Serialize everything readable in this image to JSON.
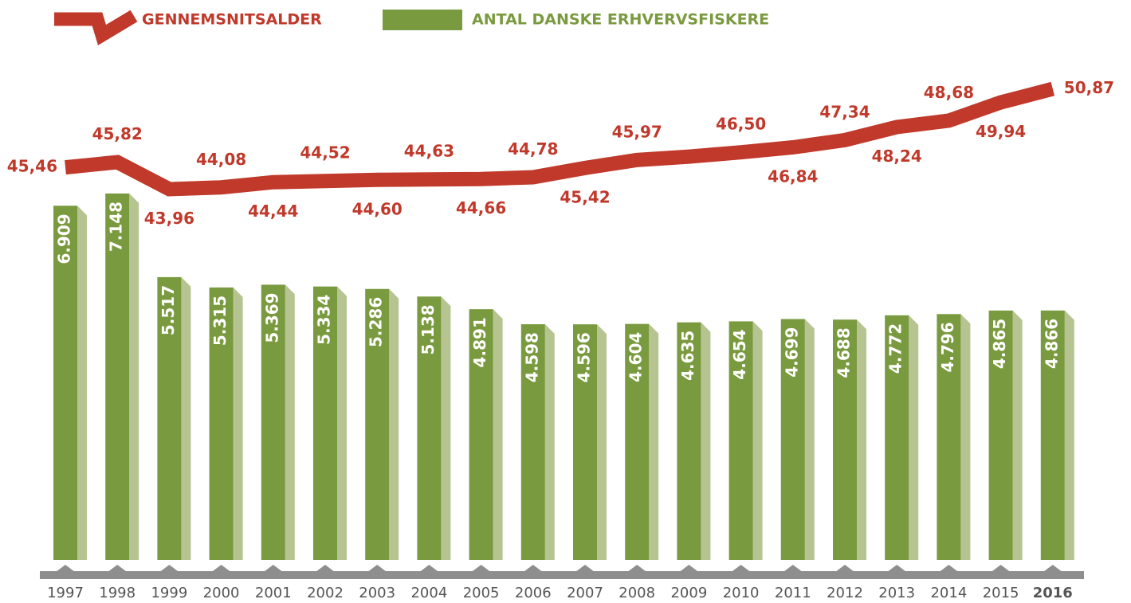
{
  "chart_data": {
    "type": "bar",
    "categories": [
      "1997",
      "1998",
      "1999",
      "2000",
      "2001",
      "2002",
      "2003",
      "2004",
      "2005",
      "2006",
      "2007",
      "2008",
      "2009",
      "2010",
      "2011",
      "2012",
      "2013",
      "2014",
      "2015",
      "2016"
    ],
    "series": [
      {
        "name": "GENNEMSNITSALDER",
        "type": "line",
        "axis": "y2",
        "color": "#c0392b",
        "values": [
          45.46,
          45.82,
          43.96,
          44.08,
          44.44,
          44.52,
          44.6,
          44.63,
          44.66,
          44.78,
          45.42,
          45.97,
          46.2,
          46.5,
          46.84,
          47.34,
          48.24,
          48.68,
          49.94,
          50.87
        ],
        "value_labels": [
          "45,46",
          "45,82",
          "43,96",
          "44,08",
          "44,44",
          "44,52",
          "44,60",
          "44,63",
          "44,66",
          "44,78",
          "45,42",
          "45,97",
          null,
          "46,50",
          "46,84",
          "47,34",
          "48,24",
          "48,68",
          "49,94",
          "50,87"
        ]
      },
      {
        "name": "ANTAL DANSKE ERHVERVSFISKERE",
        "type": "bar",
        "color": "#7a9a3f",
        "values": [
          6909,
          7148,
          5517,
          5315,
          5369,
          5334,
          5286,
          5138,
          4891,
          4598,
          4596,
          4604,
          4635,
          4654,
          4699,
          4688,
          4772,
          4796,
          4865,
          4866
        ],
        "value_labels": [
          "6.909",
          "7.148",
          "5.517",
          "5.315",
          "5.369",
          "5.334",
          "5.286",
          "5.138",
          "4.891",
          "4.598",
          "4.596",
          "4.604",
          "4.635",
          "4.654",
          "4.699",
          "4.688",
          "4.772",
          "4.796",
          "4.865",
          "4.866"
        ]
      }
    ],
    "ylim": [
      0,
      10300
    ],
    "y2lim": [
      18.4,
      54.8
    ],
    "grid": false
  }
}
